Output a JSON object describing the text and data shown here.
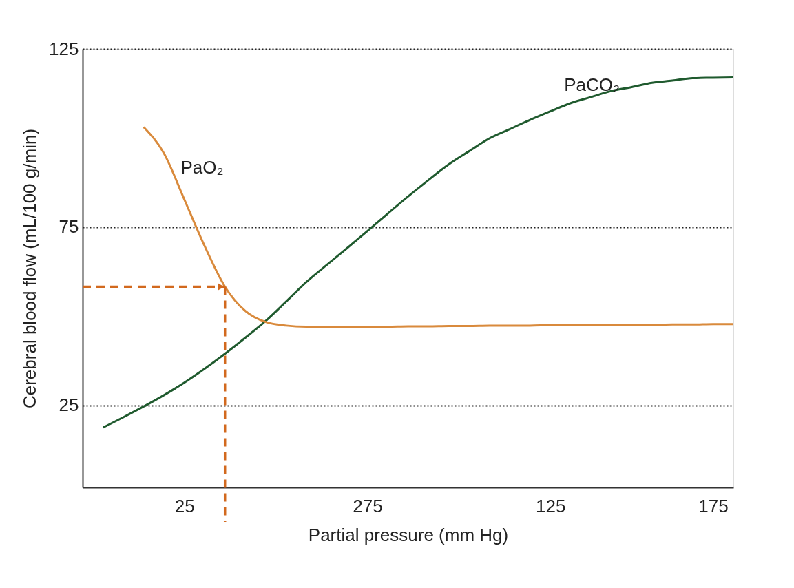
{
  "chart_data": {
    "type": "line",
    "xlabel": "Partial pressure (mm Hg)",
    "ylabel": "Cerebral blood flow (mL/100 g/min)",
    "categories": [
      null,
      null,
      null,
      null,
      null,
      "25",
      null,
      null,
      null,
      null,
      null,
      null,
      null,
      null,
      "275",
      null,
      null,
      null,
      null,
      null,
      null,
      null,
      null,
      "125",
      null,
      null,
      null,
      null,
      null,
      null,
      null,
      "175",
      null
    ],
    "ylim": [
      2,
      125
    ],
    "yticks": [
      25,
      75,
      125
    ],
    "grid": "y",
    "marker": "none",
    "series": [
      {
        "name": "PaCO₂",
        "color": "#1f5a2e",
        "values": [
          null,
          18.8,
          21.7,
          24.7,
          27.9,
          31.4,
          35.3,
          39.5,
          44.0,
          48.7,
          54.1,
          59.6,
          64.4,
          69.1,
          73.9,
          78.8,
          83.6,
          88.2,
          92.6,
          96.3,
          99.9,
          102.5,
          105.1,
          107.5,
          109.8,
          111.5,
          113.2,
          114.3,
          115.5,
          116.1,
          116.8,
          116.9,
          117.0
        ]
      },
      {
        "name": "PaO₂",
        "color": "#d98a3c",
        "values": [
          null,
          null,
          null,
          103.1,
          95.7,
          82.8,
          69.7,
          58.3,
          51.5,
          48.4,
          47.4,
          47.1,
          47.1,
          47.1,
          47.1,
          47.1,
          47.2,
          47.2,
          47.3,
          47.3,
          47.4,
          47.4,
          47.4,
          47.5,
          47.5,
          47.5,
          47.6,
          47.6,
          47.6,
          47.7,
          47.7,
          47.8,
          47.8
        ]
      },
      {
        "color": "#d2691e",
        "line_style": "dashed",
        "values": [
          58.3,
          58.3,
          58.3,
          58.3,
          58.3,
          58.3,
          58.3,
          58.3,
          null,
          null,
          null,
          null,
          null,
          null,
          null,
          null,
          null,
          null,
          null,
          null,
          null,
          null,
          null,
          null,
          null,
          null,
          null,
          null,
          null,
          null,
          null,
          null,
          null
        ]
      }
    ]
  }
}
